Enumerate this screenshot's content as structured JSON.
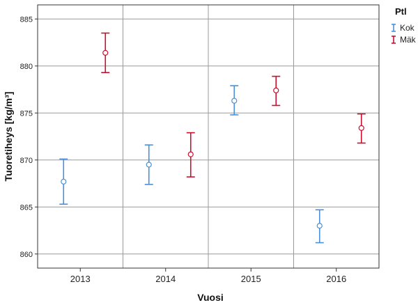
{
  "chart_data": {
    "type": "errorbar",
    "xlabel": "Vuosi",
    "ylabel": "Tuoretiheys [kg/m³]",
    "categories": [
      "2013",
      "2014",
      "2015",
      "2016"
    ],
    "ylim": [
      858.5,
      886.5
    ],
    "yticks": [
      860,
      865,
      870,
      875,
      880,
      885
    ],
    "grid": true,
    "legend": {
      "title": "Ptl",
      "position": "top-right"
    },
    "series": [
      {
        "name": "Kok",
        "color": "#4a90d9",
        "mean": [
          867.7,
          869.5,
          876.3,
          863.0
        ],
        "lower": [
          865.3,
          867.4,
          874.8,
          861.2
        ],
        "upper": [
          870.1,
          871.6,
          877.9,
          864.7
        ]
      },
      {
        "name": "Mäk",
        "color": "#c8102e",
        "mean": [
          881.4,
          870.6,
          877.4,
          873.4
        ],
        "lower": [
          879.3,
          868.2,
          875.8,
          871.8
        ],
        "upper": [
          883.5,
          872.9,
          878.9,
          874.9
        ]
      }
    ]
  }
}
